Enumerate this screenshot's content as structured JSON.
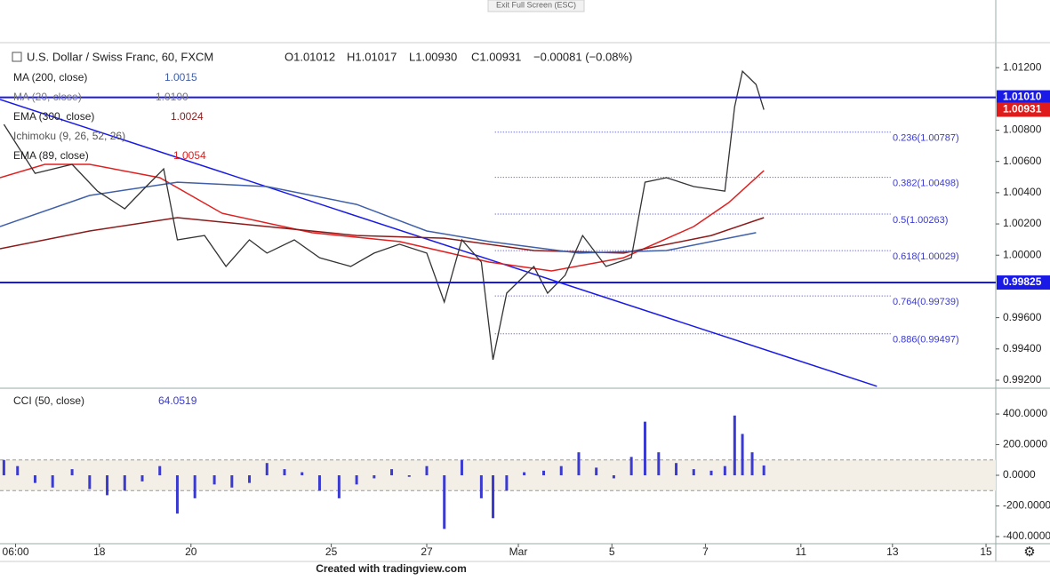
{
  "toolbar": {
    "exit": "Exit Full Screen (ESC)"
  },
  "footer": "Created with tradingview.com",
  "chart_data": [
    {
      "type": "line",
      "title": "U.S. Dollar / Swiss Franc, 60, FXCM",
      "ohlc": [
        "O1.01012",
        "H1.01017",
        "L1.00930",
        "C1.00931",
        "−0.00081 (−0.08%)"
      ],
      "legend_only": [
        {
          "name": "MA (20, close)",
          "legend_value": "1.0100"
        },
        {
          "name": "Ichimoku (9, 26, 52, 26)"
        }
      ],
      "xlim": [
        0,
        511
      ],
      "xticks": [
        {
          "value": 8,
          "label": "06:00"
        },
        {
          "value": 51,
          "label": "18"
        },
        {
          "value": 98,
          "label": "20"
        },
        {
          "value": 170,
          "label": "25"
        },
        {
          "value": 219,
          "label": "27"
        },
        {
          "value": 266,
          "label": "Mar"
        },
        {
          "value": 314,
          "label": "5"
        },
        {
          "value": 362,
          "label": "7"
        },
        {
          "value": 411,
          "label": "11"
        },
        {
          "value": 458,
          "label": "13"
        },
        {
          "value": 506,
          "label": "15"
        }
      ],
      "ylim": [
        0.9916,
        1.0136
      ],
      "yticks": [
        {
          "value": 1.012,
          "label": "1.01200"
        },
        {
          "value": 1.008,
          "label": "1.00800"
        },
        {
          "value": 1.006,
          "label": "1.00600"
        },
        {
          "value": 1.004,
          "label": "1.00400"
        },
        {
          "value": 1.002,
          "label": "1.00200"
        },
        {
          "value": 1.0,
          "label": "1.00000"
        },
        {
          "value": 0.996,
          "label": "0.99600"
        },
        {
          "value": 0.994,
          "label": "0.99400"
        },
        {
          "value": 0.992,
          "label": "0.99200"
        }
      ],
      "series": [
        {
          "color": "#333333",
          "x": [
            2,
            18,
            37,
            50,
            64,
            75,
            84,
            91,
            105,
            116,
            128,
            137,
            151,
            164,
            180,
            192,
            205,
            219,
            228,
            237,
            247,
            253,
            260,
            274,
            281,
            290,
            299,
            311,
            324,
            331,
            342,
            356,
            372,
            377,
            381,
            388,
            392
          ],
          "values": [
            1.00837,
            1.00524,
            1.00581,
            1.0041,
            1.00297,
            1.00439,
            1.00552,
            1.00098,
            1.00126,
            0.99928,
            1.00098,
            1.00013,
            1.00098,
            0.99984,
            0.99928,
            1.00013,
            1.0007,
            1.00013,
            0.997,
            1.00098,
            0.99956,
            0.99331,
            0.99757,
            0.99928,
            0.99757,
            0.99871,
            1.00126,
            0.99928,
            0.99984,
            1.00467,
            1.00496,
            1.00439,
            1.0041,
            1.0095,
            1.01177,
            1.01092,
            1.00931
          ]
        },
        {
          "name": "MA (200, close)",
          "legend_value": "1.0015",
          "color": "#3f5fa8",
          "x": [
            0,
            46,
            91,
            137,
            183,
            219,
            251,
            297,
            342,
            388
          ],
          "values": [
            1.00183,
            1.00382,
            1.00467,
            1.00439,
            1.00325,
            1.00155,
            1.00087,
            1.00013,
            1.0003,
            1.00144
          ]
        },
        {
          "name": "EMA (300, close)",
          "legend_value": "1.0024",
          "color": "#8b1a1a",
          "x": [
            0,
            46,
            91,
            137,
            183,
            228,
            274,
            320,
            365,
            392
          ],
          "values": [
            1.00041,
            1.00155,
            1.0024,
            1.00183,
            1.00126,
            1.00109,
            1.0003,
            1.00013,
            1.00126,
            1.0024
          ]
        },
        {
          "name": "EMA (89, close)",
          "legend_value": "1.0054",
          "color": "#e02020",
          "x": [
            0,
            23,
            46,
            82,
            114,
            160,
            205,
            251,
            283,
            320,
            356,
            374,
            392
          ],
          "values": [
            1.00496,
            1.00581,
            1.00581,
            1.00496,
            1.00268,
            1.00144,
            1.00087,
            0.99956,
            0.99899,
            0.99984,
            1.00183,
            1.00337,
            1.00541
          ]
        }
      ],
      "hlines": [
        {
          "value": 1.0101,
          "label": "1.01010"
        },
        {
          "value": 0.99825,
          "label": "0.99825"
        }
      ],
      "last_price": {
        "value": 1.00931,
        "label": "1.00931"
      },
      "fib": {
        "x": [
          254,
          457
        ],
        "levels": [
          {
            "value": 1.00787,
            "label": "0.236(1.00787)"
          },
          {
            "value": 1.00498,
            "label": "0.382(1.00498)"
          },
          {
            "value": 1.00263,
            "label": "0.5(1.00263)"
          },
          {
            "value": 1.00029,
            "label": "0.618(1.00029)"
          },
          {
            "value": 0.99739,
            "label": "0.764(0.99739)"
          },
          {
            "value": 0.99497,
            "label": "0.886(0.99497)"
          }
        ]
      },
      "trendline": {
        "x": [
          0,
          450
        ],
        "values": [
          1.00996,
          0.99161
        ]
      }
    },
    {
      "type": "bar",
      "title": "CCI (50, close)",
      "legend_value": "64.0519",
      "color": "#3a3ad0",
      "band": [
        -100,
        100
      ],
      "xlim": [
        0,
        511
      ],
      "ylim": [
        -435,
        551
      ],
      "yticks": [
        {
          "value": 400,
          "label": "400.0000"
        },
        {
          "value": 200,
          "label": "200.0000"
        },
        {
          "value": 0,
          "label": "0.0000"
        },
        {
          "value": -200,
          "label": "-200.0000"
        },
        {
          "value": -400,
          "label": "-400.0000"
        }
      ],
      "x": [
        2,
        9,
        18,
        27,
        37,
        46,
        55,
        64,
        73,
        82,
        91,
        100,
        110,
        119,
        128,
        137,
        146,
        155,
        164,
        174,
        183,
        192,
        201,
        210,
        219,
        228,
        237,
        247,
        253,
        260,
        269,
        279,
        288,
        297,
        306,
        315,
        324,
        331,
        338,
        347,
        356,
        365,
        372,
        377,
        381,
        386,
        392
      ],
      "values": [
        100,
        60,
        -50,
        -80,
        40,
        -90,
        -130,
        -100,
        -40,
        60,
        -250,
        -150,
        -60,
        -80,
        -50,
        80,
        40,
        20,
        -100,
        -150,
        -60,
        -20,
        40,
        -10,
        60,
        -350,
        100,
        -150,
        -280,
        -100,
        20,
        30,
        60,
        150,
        50,
        -20,
        120,
        350,
        150,
        80,
        40,
        30,
        60,
        390,
        270,
        150,
        64.0519
      ]
    }
  ]
}
